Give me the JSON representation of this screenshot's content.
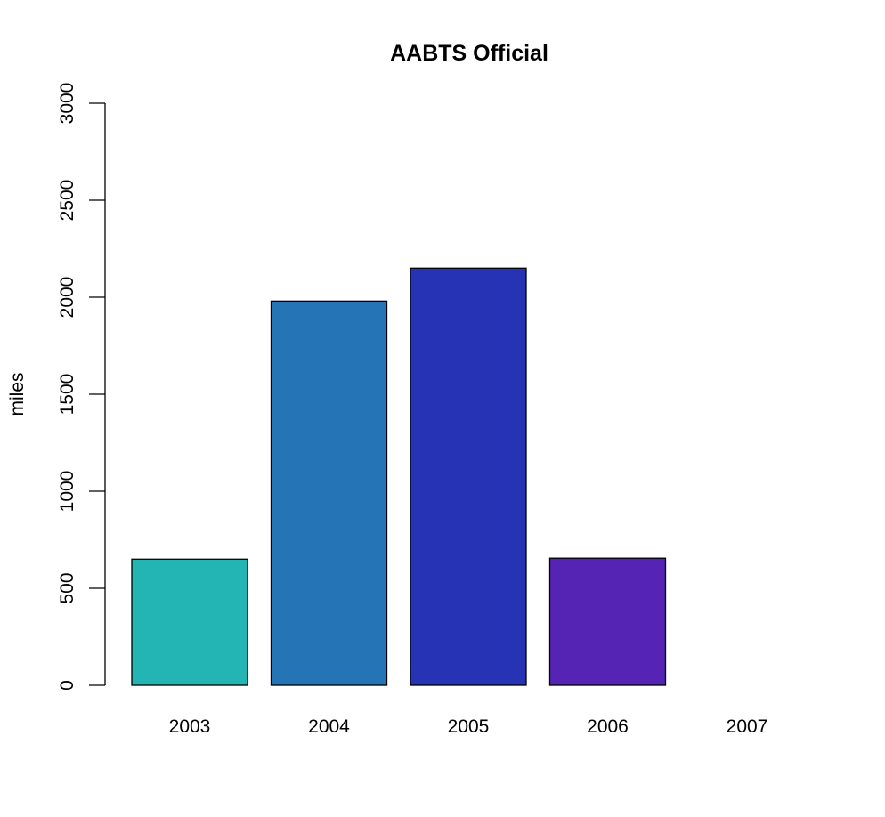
{
  "chart_data": {
    "type": "bar",
    "title": "AABTS Official",
    "xlabel": "",
    "ylabel": "miles",
    "categories": [
      "2003",
      "2004",
      "2005",
      "2006",
      "2007"
    ],
    "values": [
      650,
      1980,
      2150,
      655,
      0
    ],
    "colors": [
      "#22B5B3",
      "#2574B5",
      "#2633B5",
      "#5624B5",
      "#B524B3"
    ],
    "ylim": [
      0,
      3000
    ],
    "yticks": [
      0,
      500,
      1000,
      1500,
      2000,
      2500,
      3000
    ],
    "grid": false,
    "legend": "none"
  }
}
